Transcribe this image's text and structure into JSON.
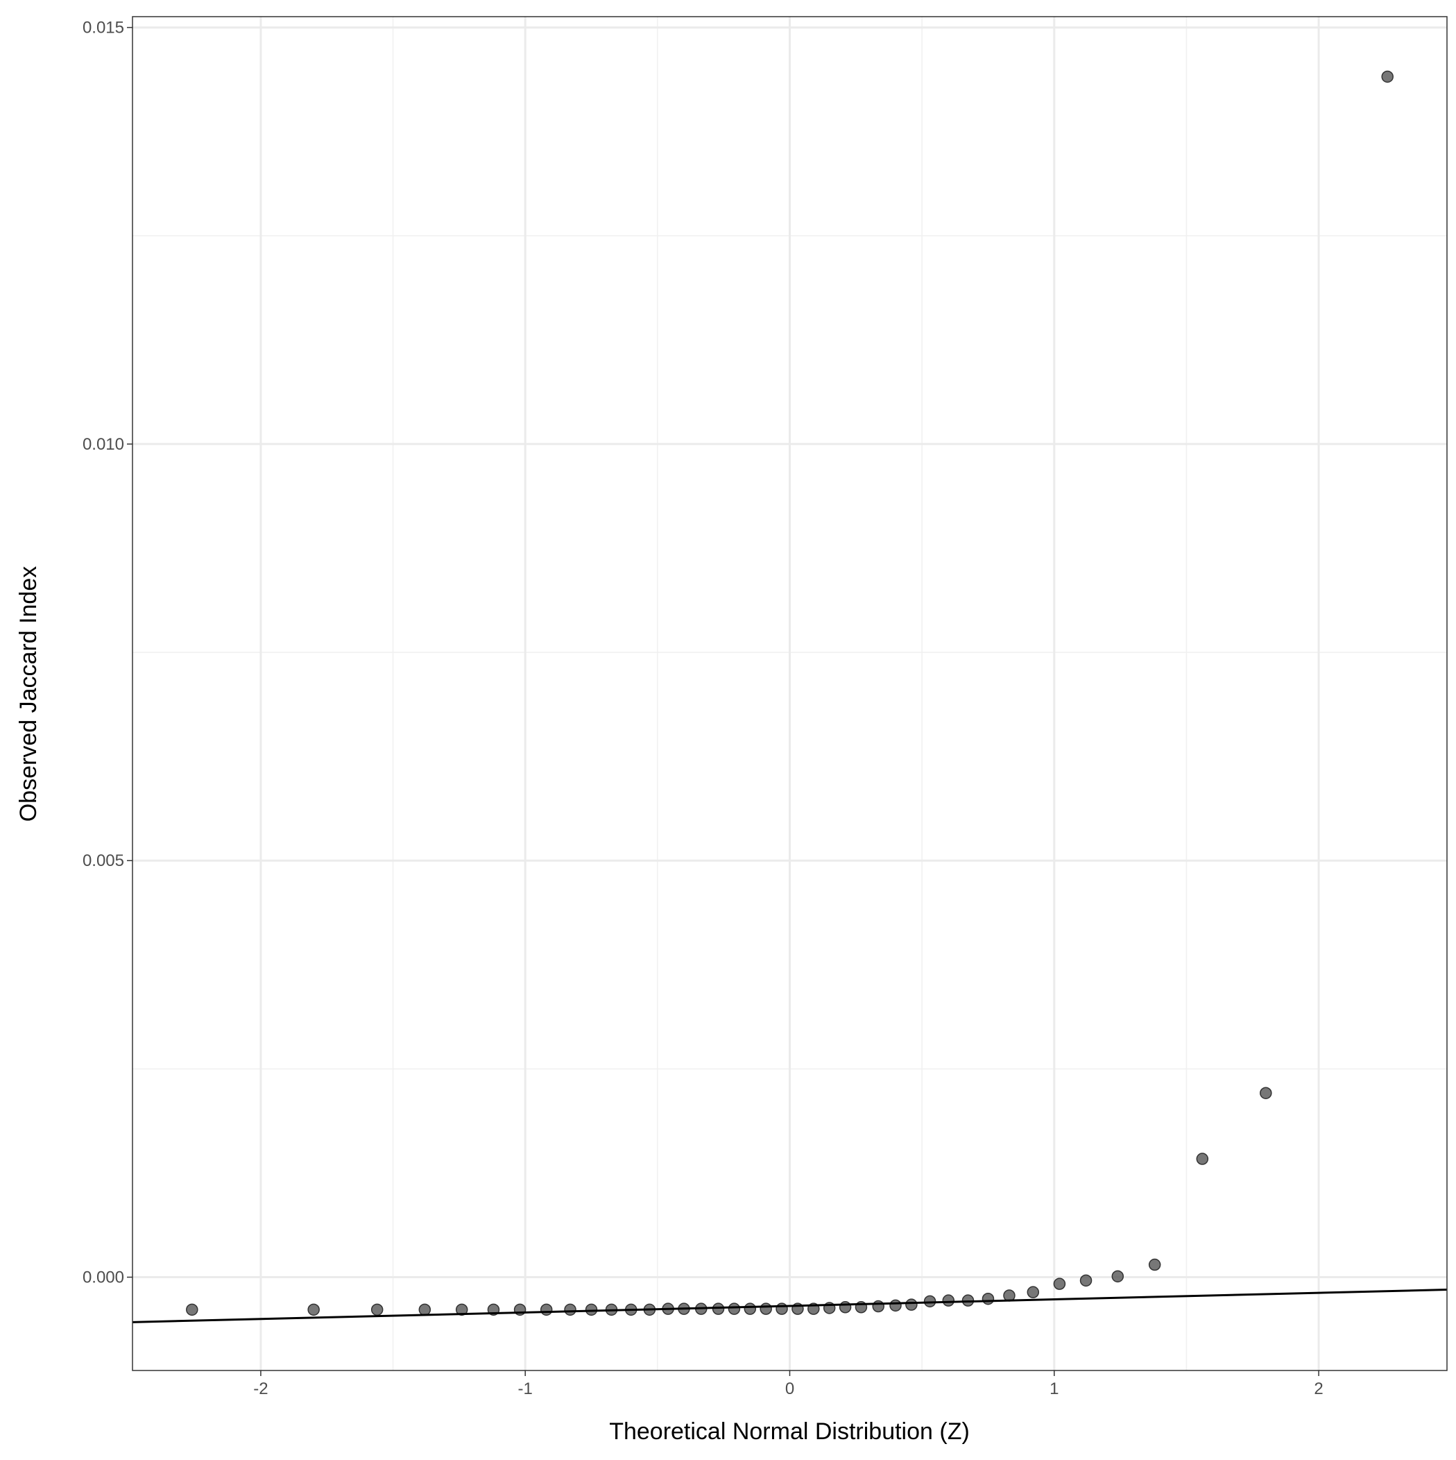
{
  "chart_data": {
    "type": "scatter",
    "x_label": "Theoretical Normal Distribution (Z)",
    "y_label": "Observed Jaccard Index",
    "xlim": [
      -2.485,
      2.485
    ],
    "ylim": [
      -0.00112,
      0.01513
    ],
    "xticks": [
      -2,
      -1,
      0,
      1,
      2
    ],
    "yticks": [
      {
        "value": 0,
        "label": "0.000"
      },
      {
        "value": 0.005,
        "label": "0.005"
      },
      {
        "value": 0.01,
        "label": "0.010"
      },
      {
        "value": 0.015,
        "label": "0.015"
      }
    ],
    "x_minor_ticks": [
      -1.5,
      -0.5,
      0.5,
      1.5
    ],
    "y_minor_ticks": [
      0.0025,
      0.0075,
      0.0125
    ],
    "grid": true,
    "color": "#555555",
    "x": [
      -2.26,
      -1.8,
      -1.56,
      -1.38,
      -1.24,
      -1.12,
      -1.02,
      -0.92,
      -0.83,
      -0.75,
      -0.674,
      -0.6,
      -0.53,
      -0.46,
      -0.4,
      -0.335,
      -0.27,
      -0.21,
      -0.15,
      -0.09,
      -0.03,
      0.03,
      0.09,
      0.15,
      0.21,
      0.27,
      0.335,
      0.4,
      0.46,
      0.53,
      0.6,
      0.674,
      0.75,
      0.83,
      0.92,
      1.02,
      1.12,
      1.24,
      1.38,
      1.56,
      1.8,
      2.26
    ],
    "values": [
      -0.00039,
      -0.00039,
      -0.00039,
      -0.00039,
      -0.00039,
      -0.00039,
      -0.00039,
      -0.00039,
      -0.00039,
      -0.00039,
      -0.00039,
      -0.00039,
      -0.00039,
      -0.00038,
      -0.00038,
      -0.00038,
      -0.00038,
      -0.00038,
      -0.00038,
      -0.00038,
      -0.00038,
      -0.00038,
      -0.00038,
      -0.00037,
      -0.00036,
      -0.00036,
      -0.00035,
      -0.00034,
      -0.00033,
      -0.00029,
      -0.00028,
      -0.00028,
      -0.00026,
      -0.00022,
      -0.00018,
      -8e-05,
      -4e-05,
      1e-05,
      0.00015,
      0.00142,
      0.00221,
      0.01441
    ],
    "reference_line": {
      "x": [
        -2.485,
        2.485
      ],
      "y": [
        -0.00054,
        -0.00015
      ],
      "color": "#000000"
    }
  }
}
